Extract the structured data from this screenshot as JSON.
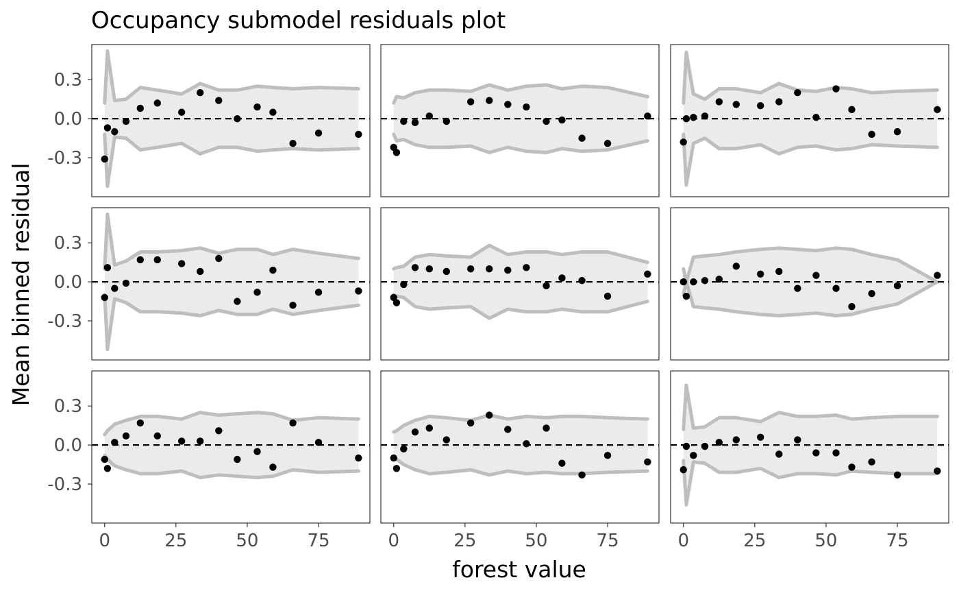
{
  "chart_data": {
    "type": "scatter",
    "title": "Occupancy submodel residuals plot",
    "xlabel": "forest value",
    "ylabel": "Mean binned residual",
    "xlim": [
      -4.5,
      93
    ],
    "ylim": [
      -0.6,
      0.57
    ],
    "x_ticks": [
      0,
      25,
      50,
      75
    ],
    "y_ticks": [
      -0.3,
      0.0,
      0.3
    ],
    "y_tick_labels": [
      "-0.3",
      "0.0",
      "0.3"
    ],
    "grid": false,
    "reference_line": 0,
    "layout": {
      "rows": 3,
      "cols": 3
    },
    "band_x": [
      0,
      1,
      3.5,
      7.5,
      12.5,
      18.5,
      27,
      33.5,
      40,
      46.5,
      53.5,
      59,
      66,
      75,
      89
    ],
    "panels": [
      {
        "band_upper": [
          0.12,
          0.52,
          0.14,
          0.15,
          0.24,
          0.22,
          0.19,
          0.27,
          0.22,
          0.22,
          0.25,
          0.24,
          0.23,
          0.24,
          0.23
        ],
        "points": [
          [
            0,
            -0.31
          ],
          [
            1,
            -0.07
          ],
          [
            3.5,
            -0.1
          ],
          [
            7.5,
            -0.02
          ],
          [
            12.5,
            0.08
          ],
          [
            18.5,
            0.12
          ],
          [
            27,
            0.05
          ],
          [
            33.5,
            0.2
          ],
          [
            40,
            0.14
          ],
          [
            46.5,
            0.0
          ],
          [
            53.5,
            0.09
          ],
          [
            59,
            0.05
          ],
          [
            66,
            -0.19
          ],
          [
            75,
            -0.11
          ],
          [
            89,
            -0.12
          ]
        ]
      },
      {
        "band_upper": [
          0.12,
          0.17,
          0.16,
          0.2,
          0.22,
          0.22,
          0.21,
          0.26,
          0.22,
          0.25,
          0.26,
          0.23,
          0.25,
          0.24,
          0.17
        ],
        "points": [
          [
            0,
            -0.22
          ],
          [
            1,
            -0.26
          ],
          [
            3.5,
            -0.02
          ],
          [
            7.5,
            -0.03
          ],
          [
            12.5,
            0.02
          ],
          [
            18.5,
            -0.02
          ],
          [
            27,
            0.13
          ],
          [
            33.5,
            0.14
          ],
          [
            40,
            0.11
          ],
          [
            46.5,
            0.09
          ],
          [
            53.5,
            -0.02
          ],
          [
            59,
            -0.01
          ],
          [
            66,
            -0.15
          ],
          [
            75,
            -0.19
          ],
          [
            89,
            0.02
          ]
        ]
      },
      {
        "band_upper": [
          0.12,
          0.51,
          0.19,
          0.15,
          0.23,
          0.23,
          0.2,
          0.27,
          0.22,
          0.21,
          0.24,
          0.23,
          0.2,
          0.21,
          0.22
        ],
        "points": [
          [
            0,
            -0.18
          ],
          [
            1,
            0.0
          ],
          [
            3.5,
            0.01
          ],
          [
            7.5,
            0.02
          ],
          [
            12.5,
            0.13
          ],
          [
            18.5,
            0.11
          ],
          [
            27,
            0.1
          ],
          [
            33.5,
            0.13
          ],
          [
            40,
            0.2
          ],
          [
            46.5,
            0.01
          ],
          [
            53.5,
            0.23
          ],
          [
            59,
            0.07
          ],
          [
            66,
            -0.12
          ],
          [
            75,
            -0.1
          ],
          [
            89,
            0.07
          ]
        ]
      },
      {
        "band_upper": [
          0.1,
          0.52,
          0.13,
          0.16,
          0.23,
          0.23,
          0.24,
          0.26,
          0.22,
          0.25,
          0.25,
          0.21,
          0.25,
          0.22,
          0.18
        ],
        "points": [
          [
            0,
            -0.12
          ],
          [
            1,
            0.11
          ],
          [
            3.5,
            -0.05
          ],
          [
            7.5,
            -0.01
          ],
          [
            12.5,
            0.17
          ],
          [
            18.5,
            0.17
          ],
          [
            27,
            0.14
          ],
          [
            33.5,
            0.08
          ],
          [
            40,
            0.18
          ],
          [
            46.5,
            -0.15
          ],
          [
            53.5,
            -0.08
          ],
          [
            59,
            0.09
          ],
          [
            66,
            -0.18
          ],
          [
            75,
            -0.08
          ],
          [
            89,
            -0.07
          ]
        ]
      },
      {
        "band_upper": [
          0.1,
          0.11,
          0.12,
          0.19,
          0.21,
          0.2,
          0.19,
          0.28,
          0.21,
          0.23,
          0.23,
          0.21,
          0.23,
          0.23,
          0.15
        ],
        "points": [
          [
            0,
            -0.12
          ],
          [
            1,
            -0.16
          ],
          [
            3.5,
            -0.02
          ],
          [
            7.5,
            0.11
          ],
          [
            12.5,
            0.1
          ],
          [
            18.5,
            0.08
          ],
          [
            27,
            0.1
          ],
          [
            33.5,
            0.1
          ],
          [
            40,
            0.09
          ],
          [
            46.5,
            0.11
          ],
          [
            53.5,
            -0.03
          ],
          [
            59,
            0.03
          ],
          [
            66,
            0.01
          ],
          [
            75,
            -0.11
          ],
          [
            89,
            0.06
          ]
        ]
      },
      {
        "band_upper": [
          0.1,
          0.0,
          0.19,
          0.2,
          0.21,
          0.23,
          0.25,
          0.26,
          0.25,
          0.24,
          0.26,
          0.25,
          0.21,
          0.17,
          0.0
        ],
        "points": [
          [
            0,
            0.0
          ],
          [
            1,
            -0.11
          ],
          [
            3.5,
            0.0
          ],
          [
            7.5,
            0.01
          ],
          [
            12.5,
            0.02
          ],
          [
            18.5,
            0.12
          ],
          [
            27,
            0.06
          ],
          [
            33.5,
            0.08
          ],
          [
            40,
            -0.05
          ],
          [
            46.5,
            0.05
          ],
          [
            53.5,
            -0.05
          ],
          [
            59,
            -0.19
          ],
          [
            66,
            -0.09
          ],
          [
            75,
            -0.03
          ],
          [
            89,
            0.05
          ]
        ]
      },
      {
        "band_upper": [
          0.08,
          0.11,
          0.16,
          0.19,
          0.22,
          0.22,
          0.2,
          0.25,
          0.23,
          0.24,
          0.25,
          0.24,
          0.19,
          0.21,
          0.2
        ],
        "points": [
          [
            0,
            -0.11
          ],
          [
            1,
            -0.18
          ],
          [
            3.5,
            0.02
          ],
          [
            7.5,
            0.07
          ],
          [
            12.5,
            0.17
          ],
          [
            18.5,
            0.07
          ],
          [
            27,
            0.03
          ],
          [
            33.5,
            0.03
          ],
          [
            40,
            0.11
          ],
          [
            46.5,
            -0.11
          ],
          [
            53.5,
            -0.05
          ],
          [
            59,
            -0.17
          ],
          [
            66,
            0.17
          ],
          [
            75,
            0.02
          ],
          [
            89,
            -0.1
          ]
        ]
      },
      {
        "band_upper": [
          0.1,
          0.11,
          0.15,
          0.19,
          0.22,
          0.21,
          0.19,
          0.23,
          0.2,
          0.22,
          0.21,
          0.22,
          0.22,
          0.21,
          0.2
        ],
        "points": [
          [
            0,
            -0.1
          ],
          [
            1,
            -0.18
          ],
          [
            3.5,
            -0.03
          ],
          [
            7.5,
            0.1
          ],
          [
            12.5,
            0.13
          ],
          [
            18.5,
            0.04
          ],
          [
            27,
            0.17
          ],
          [
            33.5,
            0.23
          ],
          [
            40,
            0.12
          ],
          [
            46.5,
            0.01
          ],
          [
            53.5,
            0.13
          ],
          [
            59,
            -0.14
          ],
          [
            66,
            -0.23
          ],
          [
            75,
            -0.08
          ],
          [
            89,
            -0.13
          ]
        ]
      },
      {
        "band_upper": [
          0.12,
          0.46,
          0.13,
          0.14,
          0.21,
          0.21,
          0.18,
          0.25,
          0.22,
          0.22,
          0.23,
          0.2,
          0.21,
          0.22,
          0.22
        ],
        "points": [
          [
            0,
            -0.19
          ],
          [
            1,
            -0.01
          ],
          [
            3.5,
            -0.08
          ],
          [
            7.5,
            -0.01
          ],
          [
            12.5,
            0.02
          ],
          [
            18.5,
            0.04
          ],
          [
            27,
            0.06
          ],
          [
            33.5,
            -0.07
          ],
          [
            40,
            0.04
          ],
          [
            46.5,
            -0.06
          ],
          [
            53.5,
            -0.06
          ],
          [
            59,
            -0.17
          ],
          [
            66,
            -0.13
          ],
          [
            75,
            -0.23
          ],
          [
            89,
            -0.2
          ]
        ]
      }
    ]
  }
}
